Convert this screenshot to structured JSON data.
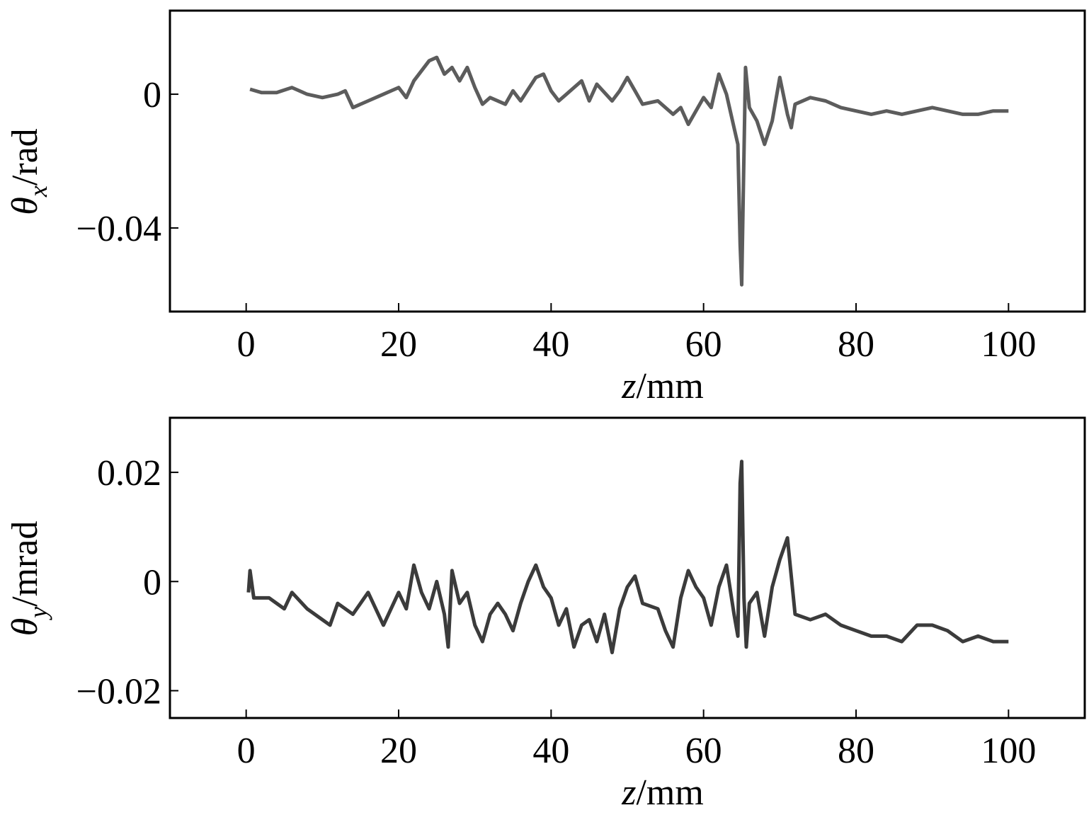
{
  "chart_data": [
    {
      "type": "line",
      "color": "#4a4a4a",
      "ylabel": {
        "symbol": "θ",
        "subscript": "x",
        "unit": "/rad"
      },
      "xlabel": {
        "symbol": "z",
        "unit": "/mm"
      },
      "xlim": [
        -10,
        110
      ],
      "xticks": [
        0,
        20,
        40,
        60,
        80,
        100
      ],
      "ylim": [
        -0.065,
        0.025
      ],
      "yticks": [
        {
          "value": -0.04,
          "label": "−0.04"
        },
        0
      ],
      "x": [
        0.5,
        2,
        4,
        6,
        8,
        10,
        12,
        13,
        14,
        16,
        18,
        20,
        21,
        22,
        24,
        25,
        26,
        27,
        28,
        29,
        30,
        31,
        32,
        34,
        35,
        36,
        38,
        39,
        40,
        41,
        42,
        44,
        45,
        46,
        48,
        49,
        50,
        51,
        52,
        54,
        56,
        57,
        58,
        60,
        61,
        62,
        63,
        64,
        64.5,
        64.8,
        65,
        65.2,
        65.5,
        66,
        67,
        68,
        69,
        70,
        71,
        71.5,
        72,
        74,
        76,
        78,
        80,
        82,
        84,
        86,
        88,
        90,
        92,
        94,
        96,
        98,
        100
      ],
      "values": [
        0.0015,
        0.0005,
        0.0005,
        0.002,
        0.0,
        -0.001,
        0.0,
        0.001,
        -0.004,
        -0.002,
        0.0,
        0.002,
        -0.001,
        0.004,
        0.01,
        0.011,
        0.006,
        0.008,
        0.004,
        0.008,
        0.002,
        -0.003,
        -0.001,
        -0.003,
        0.001,
        -0.002,
        0.005,
        0.006,
        0.001,
        -0.002,
        0.0,
        0.004,
        -0.002,
        0.003,
        -0.002,
        0.001,
        0.005,
        0.001,
        -0.003,
        -0.002,
        -0.006,
        -0.004,
        -0.009,
        -0.001,
        -0.004,
        0.006,
        0.0,
        -0.01,
        -0.015,
        -0.045,
        -0.057,
        -0.03,
        0.008,
        -0.004,
        -0.008,
        -0.015,
        -0.008,
        0.005,
        -0.006,
        -0.01,
        -0.003,
        -0.001,
        -0.002,
        -0.004,
        -0.005,
        -0.006,
        -0.005,
        -0.006,
        -0.005,
        -0.004,
        -0.005,
        -0.006,
        -0.006,
        -0.005,
        -0.005
      ]
    },
    {
      "type": "line",
      "color": "#262626",
      "ylabel": {
        "symbol": "θ",
        "subscript": "y",
        "unit": "/mrad"
      },
      "xlabel": {
        "symbol": "z",
        "unit": "/mm"
      },
      "xlim": [
        -10,
        110
      ],
      "xticks": [
        0,
        20,
        40,
        60,
        80,
        100
      ],
      "ylim": [
        -0.025,
        0.03
      ],
      "yticks": [
        {
          "value": -0.02,
          "label": "−0.02"
        },
        0,
        0.02
      ],
      "x": [
        0.3,
        0.5,
        1,
        3,
        5,
        6,
        8,
        10,
        11,
        12,
        14,
        16,
        18,
        20,
        21,
        22,
        23,
        24,
        25,
        26,
        26.5,
        27,
        28,
        29,
        30,
        31,
        32,
        33,
        34,
        35,
        36,
        37,
        38,
        39,
        40,
        41,
        42,
        43,
        44,
        45,
        46,
        47,
        48,
        49,
        50,
        51,
        52,
        54,
        55,
        56,
        57,
        58,
        59,
        60,
        61,
        62,
        63,
        64,
        64.5,
        64.8,
        65,
        65.3,
        65.6,
        66,
        67,
        68,
        69,
        70,
        71,
        72,
        74,
        76,
        78,
        80,
        82,
        84,
        86,
        88,
        90,
        92,
        94,
        96,
        98,
        100
      ],
      "values": [
        -0.002,
        0.002,
        -0.003,
        -0.003,
        -0.005,
        -0.002,
        -0.005,
        -0.007,
        -0.008,
        -0.004,
        -0.006,
        -0.002,
        -0.008,
        -0.002,
        -0.005,
        0.003,
        -0.002,
        -0.005,
        0.0,
        -0.006,
        -0.012,
        0.002,
        -0.004,
        -0.002,
        -0.008,
        -0.011,
        -0.006,
        -0.004,
        -0.006,
        -0.009,
        -0.004,
        0.0,
        0.003,
        -0.001,
        -0.003,
        -0.008,
        -0.005,
        -0.012,
        -0.008,
        -0.007,
        -0.011,
        -0.006,
        -0.013,
        -0.005,
        -0.001,
        0.001,
        -0.004,
        -0.005,
        -0.009,
        -0.012,
        -0.003,
        0.002,
        -0.001,
        -0.003,
        -0.008,
        -0.001,
        0.003,
        -0.006,
        -0.01,
        0.018,
        0.022,
        -0.003,
        -0.012,
        -0.004,
        -0.002,
        -0.01,
        -0.001,
        0.004,
        0.008,
        -0.006,
        -0.007,
        -0.006,
        -0.008,
        -0.009,
        -0.01,
        -0.01,
        -0.011,
        -0.008,
        -0.008,
        -0.009,
        -0.011,
        -0.01,
        -0.011,
        -0.011
      ]
    }
  ]
}
